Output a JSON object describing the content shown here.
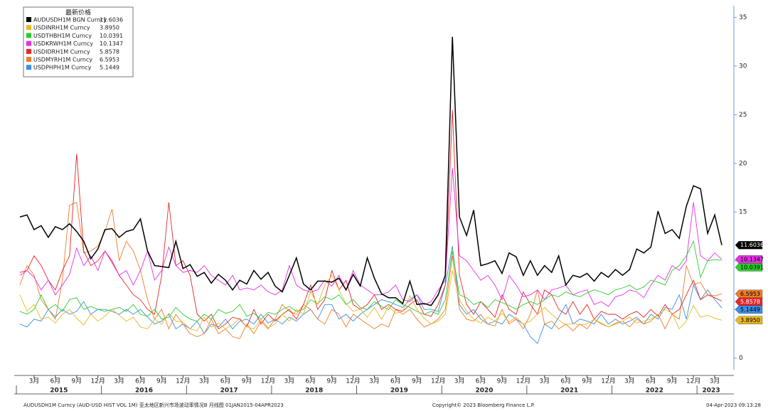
{
  "chart_data": {
    "type": "line",
    "legend_title": "最新价格",
    "x": [
      "2015-01",
      "2015-02",
      "2015-03",
      "2015-04",
      "2015-05",
      "2015-06",
      "2015-07",
      "2015-08",
      "2015-09",
      "2015-10",
      "2015-11",
      "2015-12",
      "2016-01",
      "2016-02",
      "2016-03",
      "2016-04",
      "2016-05",
      "2016-06",
      "2016-07",
      "2016-08",
      "2016-09",
      "2016-10",
      "2016-11",
      "2016-12",
      "2017-01",
      "2017-02",
      "2017-03",
      "2017-04",
      "2017-05",
      "2017-06",
      "2017-07",
      "2017-08",
      "2017-09",
      "2017-10",
      "2017-11",
      "2017-12",
      "2018-01",
      "2018-02",
      "2018-03",
      "2018-04",
      "2018-05",
      "2018-06",
      "2018-07",
      "2018-08",
      "2018-09",
      "2018-10",
      "2018-11",
      "2018-12",
      "2019-01",
      "2019-02",
      "2019-03",
      "2019-04",
      "2019-05",
      "2019-06",
      "2019-07",
      "2019-08",
      "2019-09",
      "2019-10",
      "2019-11",
      "2019-12",
      "2020-01",
      "2020-02",
      "2020-03",
      "2020-04",
      "2020-05",
      "2020-06",
      "2020-07",
      "2020-08",
      "2020-09",
      "2020-10",
      "2020-11",
      "2020-12",
      "2021-01",
      "2021-02",
      "2021-03",
      "2021-04",
      "2021-05",
      "2021-06",
      "2021-07",
      "2021-08",
      "2021-09",
      "2021-10",
      "2021-11",
      "2021-12",
      "2022-01",
      "2022-02",
      "2022-03",
      "2022-04",
      "2022-05",
      "2022-06",
      "2022-07",
      "2022-08",
      "2022-09",
      "2022-10",
      "2022-11",
      "2022-12",
      "2023-01",
      "2023-02",
      "2023-03",
      "2023-04"
    ],
    "series": [
      {
        "name": "AUDUSDH1M BGN Curncy",
        "color": "#000000",
        "last_label": "11.6036",
        "values": [
          14.5,
          14.7,
          13.2,
          13.6,
          12.4,
          13.5,
          13.2,
          13.8,
          13.0,
          12.0,
          10.2,
          11.2,
          13.2,
          13.3,
          12.4,
          13.0,
          13.2,
          14.3,
          11.0,
          9.5,
          9.4,
          9.3,
          12.0,
          9.2,
          9.6,
          8.4,
          8.8,
          7.7,
          8.6,
          8.0,
          7.0,
          8.0,
          7.6,
          9.0,
          8.1,
          8.8,
          7.4,
          6.8,
          8.5,
          10.3,
          7.6,
          7.0,
          7.9,
          7.9,
          7.8,
          8.2,
          7.0,
          8.6,
          7.4,
          10.3,
          8.2,
          6.6,
          6.2,
          6.2,
          5.6,
          7.9,
          5.5,
          5.6,
          5.4,
          6.5,
          8.5,
          33.0,
          14.5,
          12.6,
          15.2,
          9.5,
          9.7,
          10.0,
          8.7,
          10.8,
          10.4,
          8.5,
          10.0,
          8.5,
          9.5,
          8.8,
          10.5,
          7.5,
          8.5,
          8.3,
          8.7,
          7.9,
          8.8,
          8.3,
          9.1,
          8.5,
          9.1,
          11.2,
          10.8,
          11.4,
          15.1,
          12.8,
          13.2,
          12.3,
          15.6,
          17.7,
          17.4,
          12.8,
          14.7,
          11.6036
        ]
      },
      {
        "name": "USDINRH1M Curncy",
        "color": "#e8b923",
        "last_label": "3.8950",
        "values": [
          6.5,
          4.8,
          5.5,
          4.0,
          4.2,
          3.6,
          4.5,
          5.0,
          4.1,
          3.4,
          4.5,
          3.8,
          4.3,
          5.0,
          4.4,
          3.8,
          4.2,
          3.2,
          3.0,
          4.0,
          3.5,
          4.6,
          3.8,
          3.7,
          3.0,
          2.8,
          4.2,
          3.2,
          3.6,
          3.0,
          3.4,
          4.1,
          3.2,
          3.0,
          4.0,
          3.1,
          3.5,
          4.5,
          3.8,
          5.0,
          4.5,
          6.8,
          5.5,
          7.5,
          8.5,
          7.0,
          5.6,
          4.8,
          5.0,
          4.2,
          5.2,
          4.0,
          5.3,
          4.6,
          4.8,
          6.4,
          5.0,
          4.1,
          3.5,
          3.8,
          4.5,
          9.0,
          6.0,
          4.8,
          4.0,
          3.6,
          4.2,
          3.8,
          4.6,
          3.7,
          4.2,
          3.5,
          3.8,
          4.5,
          5.2,
          4.5,
          3.9,
          3.4,
          3.6,
          3.4,
          3.5,
          4.0,
          3.6,
          3.2,
          3.6,
          3.8,
          4.2,
          3.6,
          3.8,
          4.0,
          4.4,
          5.0,
          4.6,
          3.0,
          3.8,
          5.4,
          4.2,
          4.4,
          4.1,
          3.895
        ]
      },
      {
        "name": "USDTHBH1M Curncy",
        "color": "#2ecc2e",
        "last_label": "10.0391",
        "values": [
          4.8,
          4.5,
          5.0,
          6.5,
          5.0,
          5.5,
          4.8,
          6.0,
          6.2,
          5.0,
          5.3,
          5.0,
          4.8,
          5.0,
          5.2,
          4.8,
          5.5,
          4.5,
          4.3,
          5.0,
          4.0,
          4.2,
          5.2,
          4.5,
          4.0,
          3.8,
          4.5,
          4.0,
          5.0,
          4.6,
          4.8,
          5.5,
          4.3,
          4.6,
          4.0,
          4.7,
          4.5,
          5.0,
          5.3,
          4.8,
          5.0,
          6.0,
          5.6,
          6.3,
          6.0,
          6.5,
          5.5,
          6.0,
          5.2,
          5.0,
          5.8,
          5.3,
          5.0,
          6.0,
          5.5,
          5.2,
          4.8,
          4.5,
          4.8,
          4.5,
          6.0,
          11.0,
          6.5,
          6.2,
          5.5,
          5.8,
          5.2,
          6.0,
          5.7,
          5.4,
          5.0,
          5.5,
          5.8,
          5.5,
          6.0,
          6.5,
          6.3,
          6.8,
          6.5,
          6.3,
          6.7,
          7.0,
          6.8,
          6.5,
          7.0,
          7.2,
          7.5,
          7.0,
          7.3,
          8.0,
          7.8,
          7.5,
          9.0,
          9.5,
          10.5,
          12.0,
          8.3,
          10.0,
          10.1,
          10.0391
        ]
      },
      {
        "name": "USDKRWH1M Curncy",
        "color": "#e62ee6",
        "last_label": "10.1347",
        "values": [
          8.5,
          9.0,
          8.3,
          7.0,
          8.0,
          6.5,
          7.5,
          8.6,
          11.3,
          9.5,
          10.5,
          9.0,
          11.0,
          10.0,
          8.5,
          9.0,
          7.5,
          9.0,
          11.0,
          8.0,
          9.0,
          11.4,
          9.5,
          8.8,
          9.0,
          8.8,
          9.5,
          8.5,
          8.0,
          7.5,
          8.5,
          7.0,
          7.2,
          7.0,
          7.5,
          6.8,
          6.5,
          7.0,
          9.5,
          7.5,
          7.0,
          6.8,
          7.0,
          8.0,
          7.4,
          8.5,
          7.0,
          9.0,
          7.5,
          7.0,
          6.5,
          6.5,
          6.8,
          7.5,
          6.0,
          5.8,
          6.5,
          5.5,
          5.8,
          7.0,
          8.0,
          19.5,
          10.5,
          10.0,
          9.0,
          8.0,
          8.5,
          7.5,
          6.0,
          8.5,
          7.5,
          6.3,
          6.5,
          7.0,
          6.0,
          7.0,
          7.2,
          7.5,
          6.5,
          6.8,
          7.0,
          5.5,
          5.8,
          5.3,
          6.3,
          6.5,
          7.0,
          6.8,
          6.2,
          7.5,
          8.5,
          8.0,
          9.5,
          9.0,
          10.0,
          16.0,
          10.5,
          10.0,
          10.8,
          10.1347
        ]
      },
      {
        "name": "USDIDRH1M Curncy",
        "color": "#e8252a",
        "last_label": "5.8578",
        "values": [
          8.8,
          9.0,
          10.5,
          9.5,
          8.0,
          7.0,
          9.0,
          10.5,
          21.0,
          11.0,
          9.5,
          10.0,
          11.0,
          9.8,
          8.5,
          7.5,
          6.5,
          6.0,
          5.0,
          4.5,
          8.5,
          16.0,
          9.5,
          10.0,
          8.5,
          4.5,
          3.8,
          4.5,
          3.0,
          3.5,
          4.2,
          4.0,
          3.2,
          5.0,
          3.5,
          4.5,
          3.8,
          4.5,
          5.0,
          4.0,
          5.5,
          7.5,
          5.0,
          6.0,
          9.0,
          7.0,
          8.0,
          5.5,
          5.0,
          5.5,
          6.5,
          5.0,
          5.5,
          5.0,
          4.8,
          5.5,
          6.0,
          4.5,
          4.3,
          5.5,
          7.5,
          25.5,
          8.5,
          5.5,
          4.5,
          5.8,
          5.0,
          4.2,
          6.5,
          5.0,
          4.5,
          6.8,
          5.5,
          4.5,
          7.0,
          6.5,
          5.0,
          4.5,
          5.8,
          4.5,
          5.5,
          4.0,
          4.8,
          4.5,
          4.5,
          4.0,
          4.5,
          4.8,
          4.2,
          5.0,
          4.3,
          5.5,
          4.5,
          5.0,
          6.5,
          8.0,
          6.0,
          6.5,
          6.2,
          5.8578
        ]
      },
      {
        "name": "USDMYRH1M Curncy",
        "color": "#f07c2a",
        "last_label": "6.5953",
        "values": [
          7.5,
          9.5,
          8.5,
          6.0,
          5.0,
          4.0,
          8.0,
          15.7,
          16.0,
          10.8,
          11.0,
          11.5,
          13.0,
          15.3,
          10.0,
          12.0,
          11.0,
          9.0,
          6.0,
          4.0,
          5.0,
          3.0,
          4.5,
          3.5,
          2.5,
          2.2,
          2.5,
          4.0,
          2.5,
          3.0,
          2.2,
          2.0,
          3.5,
          2.5,
          3.8,
          3.0,
          4.0,
          5.5,
          4.8,
          4.5,
          5.5,
          5.0,
          4.0,
          3.5,
          5.0,
          4.5,
          3.2,
          4.5,
          4.0,
          3.5,
          3.0,
          3.5,
          3.2,
          5.0,
          4.5,
          5.0,
          4.0,
          3.2,
          3.5,
          4.0,
          5.0,
          10.5,
          5.0,
          4.0,
          3.8,
          4.5,
          3.5,
          3.3,
          5.0,
          3.5,
          4.0,
          3.0,
          4.5,
          7.0,
          3.5,
          3.8,
          3.0,
          3.5,
          2.8,
          3.5,
          3.0,
          4.0,
          3.5,
          3.2,
          3.5,
          3.8,
          3.2,
          4.0,
          3.5,
          3.8,
          4.5,
          3.0,
          4.5,
          4.0,
          9.5,
          7.5,
          7.8,
          6.5,
          6.4,
          6.5953
        ]
      },
      {
        "name": "USDPHPH1M Curncy",
        "color": "#3a8ee6",
        "last_label": "5.1449",
        "values": [
          3.5,
          3.2,
          4.0,
          3.8,
          5.0,
          4.2,
          5.0,
          4.5,
          4.8,
          5.8,
          4.5,
          5.0,
          5.0,
          4.8,
          4.5,
          5.0,
          4.5,
          5.0,
          4.2,
          3.5,
          3.8,
          4.5,
          3.0,
          3.5,
          3.0,
          3.8,
          2.5,
          3.5,
          3.2,
          4.0,
          3.0,
          3.8,
          4.0,
          3.5,
          4.5,
          3.6,
          4.0,
          3.5,
          4.2,
          3.8,
          4.5,
          5.0,
          4.0,
          5.5,
          5.5,
          4.0,
          4.5,
          3.8,
          4.5,
          5.0,
          5.5,
          6.0,
          5.8,
          5.5,
          5.2,
          6.0,
          6.5,
          5.0,
          5.0,
          4.8,
          7.5,
          11.5,
          5.5,
          4.5,
          5.0,
          4.0,
          3.5,
          3.8,
          3.5,
          4.5,
          4.0,
          3.5,
          2.2,
          1.5,
          3.5,
          3.0,
          4.2,
          5.5,
          3.5,
          4.0,
          3.8,
          3.5,
          4.5,
          3.5,
          4.0,
          3.5,
          3.8,
          4.2,
          3.5,
          4.5,
          4.0,
          5.2,
          5.0,
          6.5,
          4.0,
          7.5,
          6.0,
          7.0,
          6.0,
          5.1449
        ]
      }
    ],
    "ylim": [
      -1.2,
      36.2
    ],
    "yticks": [
      0,
      5,
      10,
      15,
      20,
      25,
      30,
      35
    ],
    "xticks": [
      {
        "value": "2015-03",
        "label": "3月"
      },
      {
        "value": "2015-06",
        "label": "6月"
      },
      {
        "value": "2015-09",
        "label": "9月"
      },
      {
        "value": "2015-12",
        "label": "12月"
      },
      {
        "value": "2016-03",
        "label": "3月"
      },
      {
        "value": "2016-06",
        "label": "6月"
      },
      {
        "value": "2016-09",
        "label": "9月"
      },
      {
        "value": "2016-12",
        "label": "12月"
      },
      {
        "value": "2017-03",
        "label": "3月"
      },
      {
        "value": "2017-06",
        "label": "6月"
      },
      {
        "value": "2017-09",
        "label": "9月"
      },
      {
        "value": "2017-12",
        "label": "12月"
      },
      {
        "value": "2018-03",
        "label": "3月"
      },
      {
        "value": "2018-06",
        "label": "6月"
      },
      {
        "value": "2018-09",
        "label": "9月"
      },
      {
        "value": "2018-12",
        "label": "12月"
      },
      {
        "value": "2019-03",
        "label": "3月"
      },
      {
        "value": "2019-06",
        "label": "6月"
      },
      {
        "value": "2019-09",
        "label": "9月"
      },
      {
        "value": "2019-12",
        "label": "12月"
      },
      {
        "value": "2020-03",
        "label": "3月"
      },
      {
        "value": "2020-06",
        "label": "6月"
      },
      {
        "value": "2020-09",
        "label": "9月"
      },
      {
        "value": "2020-12",
        "label": "12月"
      },
      {
        "value": "2021-03",
        "label": "3月"
      },
      {
        "value": "2021-06",
        "label": "6月"
      },
      {
        "value": "2021-09",
        "label": "9月"
      },
      {
        "value": "2021-12",
        "label": "12月"
      },
      {
        "value": "2022-03",
        "label": "3月"
      },
      {
        "value": "2022-06",
        "label": "6月"
      },
      {
        "value": "2022-09",
        "label": "9月"
      },
      {
        "value": "2022-12",
        "label": "12月"
      },
      {
        "value": "2023-03",
        "label": "3月"
      }
    ],
    "years": [
      "2015",
      "2016",
      "2017",
      "2018",
      "2019",
      "2020",
      "2021",
      "2022",
      "2023"
    ],
    "footer_left": "AUDUSDH1M Curncy (AUD-USD HIST VOL 1M) 亚太地区新兴市场波动率情况B  月线图 01JAN2015-04APR2023",
    "footer_center": "Copyright© 2023 Bloomberg Finance L.P.",
    "footer_right": "04-Apr-2023 09:13:28"
  }
}
